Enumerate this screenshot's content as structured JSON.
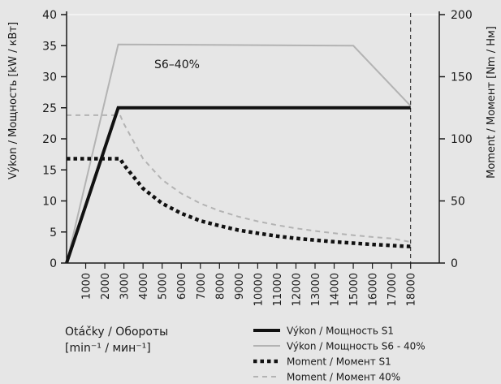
{
  "chart_data": {
    "type": "line",
    "annotation": "S6–40%",
    "xlabel_line1": "Otáčky / Обороты",
    "xlabel_line2": "[min⁻¹ / мин⁻¹]",
    "ylabel_left": "Výkon / Мощность [kW / кВт]",
    "ylabel_right": "Moment / Момент [Nm / Нм]",
    "xlim": [
      0,
      19500
    ],
    "ylim_left": [
      0,
      40
    ],
    "ylim_right": [
      0,
      200
    ],
    "x_ticks": [
      1000,
      2000,
      3000,
      4000,
      5000,
      6000,
      7000,
      8000,
      9000,
      10000,
      11000,
      12000,
      13000,
      14000,
      15000,
      16000,
      17000,
      18000
    ],
    "y_ticks_left": [
      0,
      5,
      10,
      15,
      20,
      25,
      30,
      35,
      40
    ],
    "y_ticks_right": [
      0,
      50,
      100,
      150,
      200
    ],
    "vline_x": 18000,
    "legend_position": "bottom-right",
    "series": [
      {
        "name": "Výkon / Мощность S1",
        "axis": "left",
        "color": "#111111",
        "style": "solid-thick",
        "points": [
          [
            0,
            0
          ],
          [
            2700,
            25
          ],
          [
            18000,
            25
          ]
        ]
      },
      {
        "name": "Výkon / Мощность S6 - 40%",
        "axis": "left",
        "color": "#b3b3b3",
        "style": "solid-thin",
        "points": [
          [
            0,
            0
          ],
          [
            2700,
            35.2
          ],
          [
            15000,
            35
          ],
          [
            18000,
            25.3
          ]
        ]
      },
      {
        "name": "Moment / Момент S1",
        "axis": "right",
        "color": "#111111",
        "style": "dotted-thick",
        "points": [
          [
            0,
            84
          ],
          [
            2800,
            84
          ],
          [
            3000,
            79
          ],
          [
            4000,
            60
          ],
          [
            5000,
            48
          ],
          [
            6000,
            40
          ],
          [
            7000,
            34
          ],
          [
            8000,
            30
          ],
          [
            9000,
            26.5
          ],
          [
            10000,
            24
          ],
          [
            11000,
            21.7
          ],
          [
            12000,
            19.9
          ],
          [
            13000,
            18.4
          ],
          [
            14000,
            17.1
          ],
          [
            15000,
            16
          ],
          [
            16000,
            15
          ],
          [
            17000,
            14.1
          ],
          [
            18000,
            13.3
          ]
        ]
      },
      {
        "name": "Moment / Момент 40%",
        "axis": "right",
        "color": "#b3b3b3",
        "style": "dashed-thin",
        "points": [
          [
            0,
            119
          ],
          [
            2800,
            119
          ],
          [
            3000,
            112
          ],
          [
            4000,
            84
          ],
          [
            5000,
            67
          ],
          [
            6000,
            56
          ],
          [
            7000,
            48
          ],
          [
            8000,
            42
          ],
          [
            9000,
            37.3
          ],
          [
            10000,
            33.6
          ],
          [
            11000,
            30.5
          ],
          [
            12000,
            28
          ],
          [
            13000,
            25.8
          ],
          [
            14000,
            24
          ],
          [
            15000,
            22.4
          ],
          [
            16000,
            21
          ],
          [
            17000,
            19.8
          ],
          [
            18000,
            17
          ]
        ]
      }
    ]
  }
}
